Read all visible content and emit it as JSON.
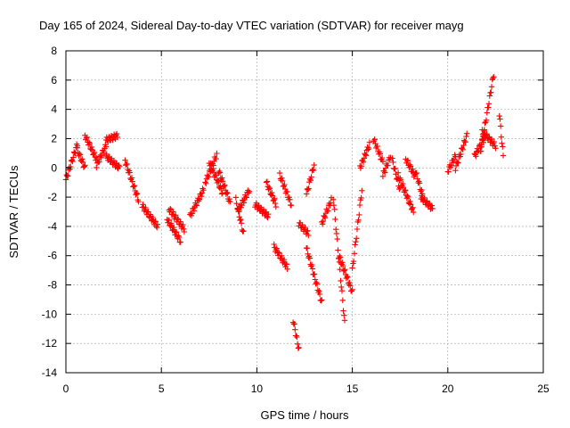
{
  "chart_data": {
    "type": "scatter",
    "title": "Day 165 of 2024, Sidereal Day-to-day VTEC variation (SDTVAR) for receiver mayg",
    "xlabel": "GPS time / hours",
    "ylabel": "SDTVAR / TECUs",
    "xlim": [
      0,
      25
    ],
    "ylim": [
      -14,
      8
    ],
    "x_ticks": [
      0,
      5,
      10,
      15,
      20,
      25
    ],
    "y_ticks": [
      -14,
      -12,
      -10,
      -8,
      -6,
      -4,
      -2,
      0,
      2,
      4,
      6,
      8
    ],
    "x_tick_labels": [
      "0",
      "5",
      "10",
      "15",
      "20",
      "25"
    ],
    "y_tick_labels": [
      "-14",
      "-12",
      "-10",
      "-8",
      "-6",
      "-4",
      "-2",
      "0",
      "2",
      "4",
      "6",
      "8"
    ],
    "grid": true,
    "marker": "+",
    "series": [
      {
        "name": "SDTVAR",
        "color": "#ff0000",
        "segments": [
          {
            "x": [
              0.0,
              0.6
            ],
            "y": [
              -0.8,
              1.6
            ]
          },
          {
            "x": [
              0.6,
              1.0
            ],
            "y": [
              1.2,
              0.0
            ]
          },
          {
            "x": [
              1.0,
              1.6
            ],
            "y": [
              2.2,
              0.6
            ]
          },
          {
            "x": [
              1.6,
              2.1
            ],
            "y": [
              0.2,
              1.5
            ]
          },
          {
            "x": [
              2.1,
              2.7
            ],
            "y": [
              1.9,
              2.2
            ]
          },
          {
            "x": [
              2.1,
              2.8
            ],
            "y": [
              0.8,
              0.0
            ]
          },
          {
            "x": [
              3.1,
              3.8
            ],
            "y": [
              0.5,
              -2.2
            ]
          },
          {
            "x": [
              4.0,
              4.8
            ],
            "y": [
              -2.6,
              -4.0
            ]
          },
          {
            "x": [
              5.3,
              6.0
            ],
            "y": [
              -3.5,
              -5.0
            ]
          },
          {
            "x": [
              5.4,
              6.2
            ],
            "y": [
              -2.8,
              -4.2
            ]
          },
          {
            "x": [
              6.5,
              7.2
            ],
            "y": [
              -3.3,
              -1.5
            ]
          },
          {
            "x": [
              7.3,
              7.9
            ],
            "y": [
              -1.0,
              0.9
            ]
          },
          {
            "x": [
              7.5,
              8.2
            ],
            "y": [
              0.4,
              -1.7
            ]
          },
          {
            "x": [
              8.0,
              8.6
            ],
            "y": [
              -0.2,
              -2.4
            ]
          },
          {
            "x": [
              8.9,
              9.3
            ],
            "y": [
              -2.2,
              -4.5
            ]
          },
          {
            "x": [
              9.0,
              9.6
            ],
            "y": [
              -3.0,
              -1.5
            ]
          },
          {
            "x": [
              9.9,
              10.6
            ],
            "y": [
              -2.5,
              -3.3
            ]
          },
          {
            "x": [
              10.5,
              11.0
            ],
            "y": [
              -1.0,
              -2.5
            ]
          },
          {
            "x": [
              10.9,
              11.6
            ],
            "y": [
              -5.4,
              -6.8
            ]
          },
          {
            "x": [
              11.2,
              11.8
            ],
            "y": [
              -0.5,
              -2.5
            ]
          },
          {
            "x": [
              11.9,
              12.2
            ],
            "y": [
              -10.4,
              -12.4
            ]
          },
          {
            "x": [
              12.2,
              12.7
            ],
            "y": [
              -3.8,
              -4.5
            ]
          },
          {
            "x": [
              12.6,
              13.0
            ],
            "y": [
              -1.8,
              0.2
            ]
          },
          {
            "x": [
              12.6,
              13.4
            ],
            "y": [
              -5.5,
              -9.2
            ]
          },
          {
            "x": [
              13.4,
              13.9
            ],
            "y": [
              -3.8,
              -2.2
            ]
          },
          {
            "x": [
              14.0,
              14.6
            ],
            "y": [
              -2.0,
              -10.6
            ]
          },
          {
            "x": [
              14.3,
              15.0
            ],
            "y": [
              -6.0,
              -8.5
            ]
          },
          {
            "x": [
              15.0,
              15.5
            ],
            "y": [
              -7.0,
              -1.5
            ]
          },
          {
            "x": [
              15.4,
              15.9
            ],
            "y": [
              0.0,
              1.6
            ]
          },
          {
            "x": [
              16.1,
              16.6
            ],
            "y": [
              2.0,
              0.4
            ]
          },
          {
            "x": [
              16.6,
              17.0
            ],
            "y": [
              -0.5,
              0.8
            ]
          },
          {
            "x": [
              17.1,
              17.5
            ],
            "y": [
              0.5,
              -1.5
            ]
          },
          {
            "x": [
              17.4,
              18.2
            ],
            "y": [
              -0.5,
              -3.0
            ]
          },
          {
            "x": [
              17.8,
              18.3
            ],
            "y": [
              0.6,
              -0.6
            ]
          },
          {
            "x": [
              18.3,
              18.7
            ],
            "y": [
              -0.2,
              -2.0
            ]
          },
          {
            "x": [
              18.6,
              19.2
            ],
            "y": [
              -2.0,
              -2.8
            ]
          },
          {
            "x": [
              20.0,
              20.4
            ],
            "y": [
              -0.2,
              0.8
            ]
          },
          {
            "x": [
              20.4,
              21.0
            ],
            "y": [
              0.0,
              2.2
            ]
          },
          {
            "x": [
              21.4,
              21.9
            ],
            "y": [
              0.8,
              2.0
            ]
          },
          {
            "x": [
              21.7,
              22.4
            ],
            "y": [
              1.0,
              6.4
            ]
          },
          {
            "x": [
              21.8,
              22.5
            ],
            "y": [
              2.5,
              1.5
            ]
          },
          {
            "x": [
              22.7,
              22.9
            ],
            "y": [
              3.7,
              0.8
            ]
          }
        ]
      }
    ]
  }
}
